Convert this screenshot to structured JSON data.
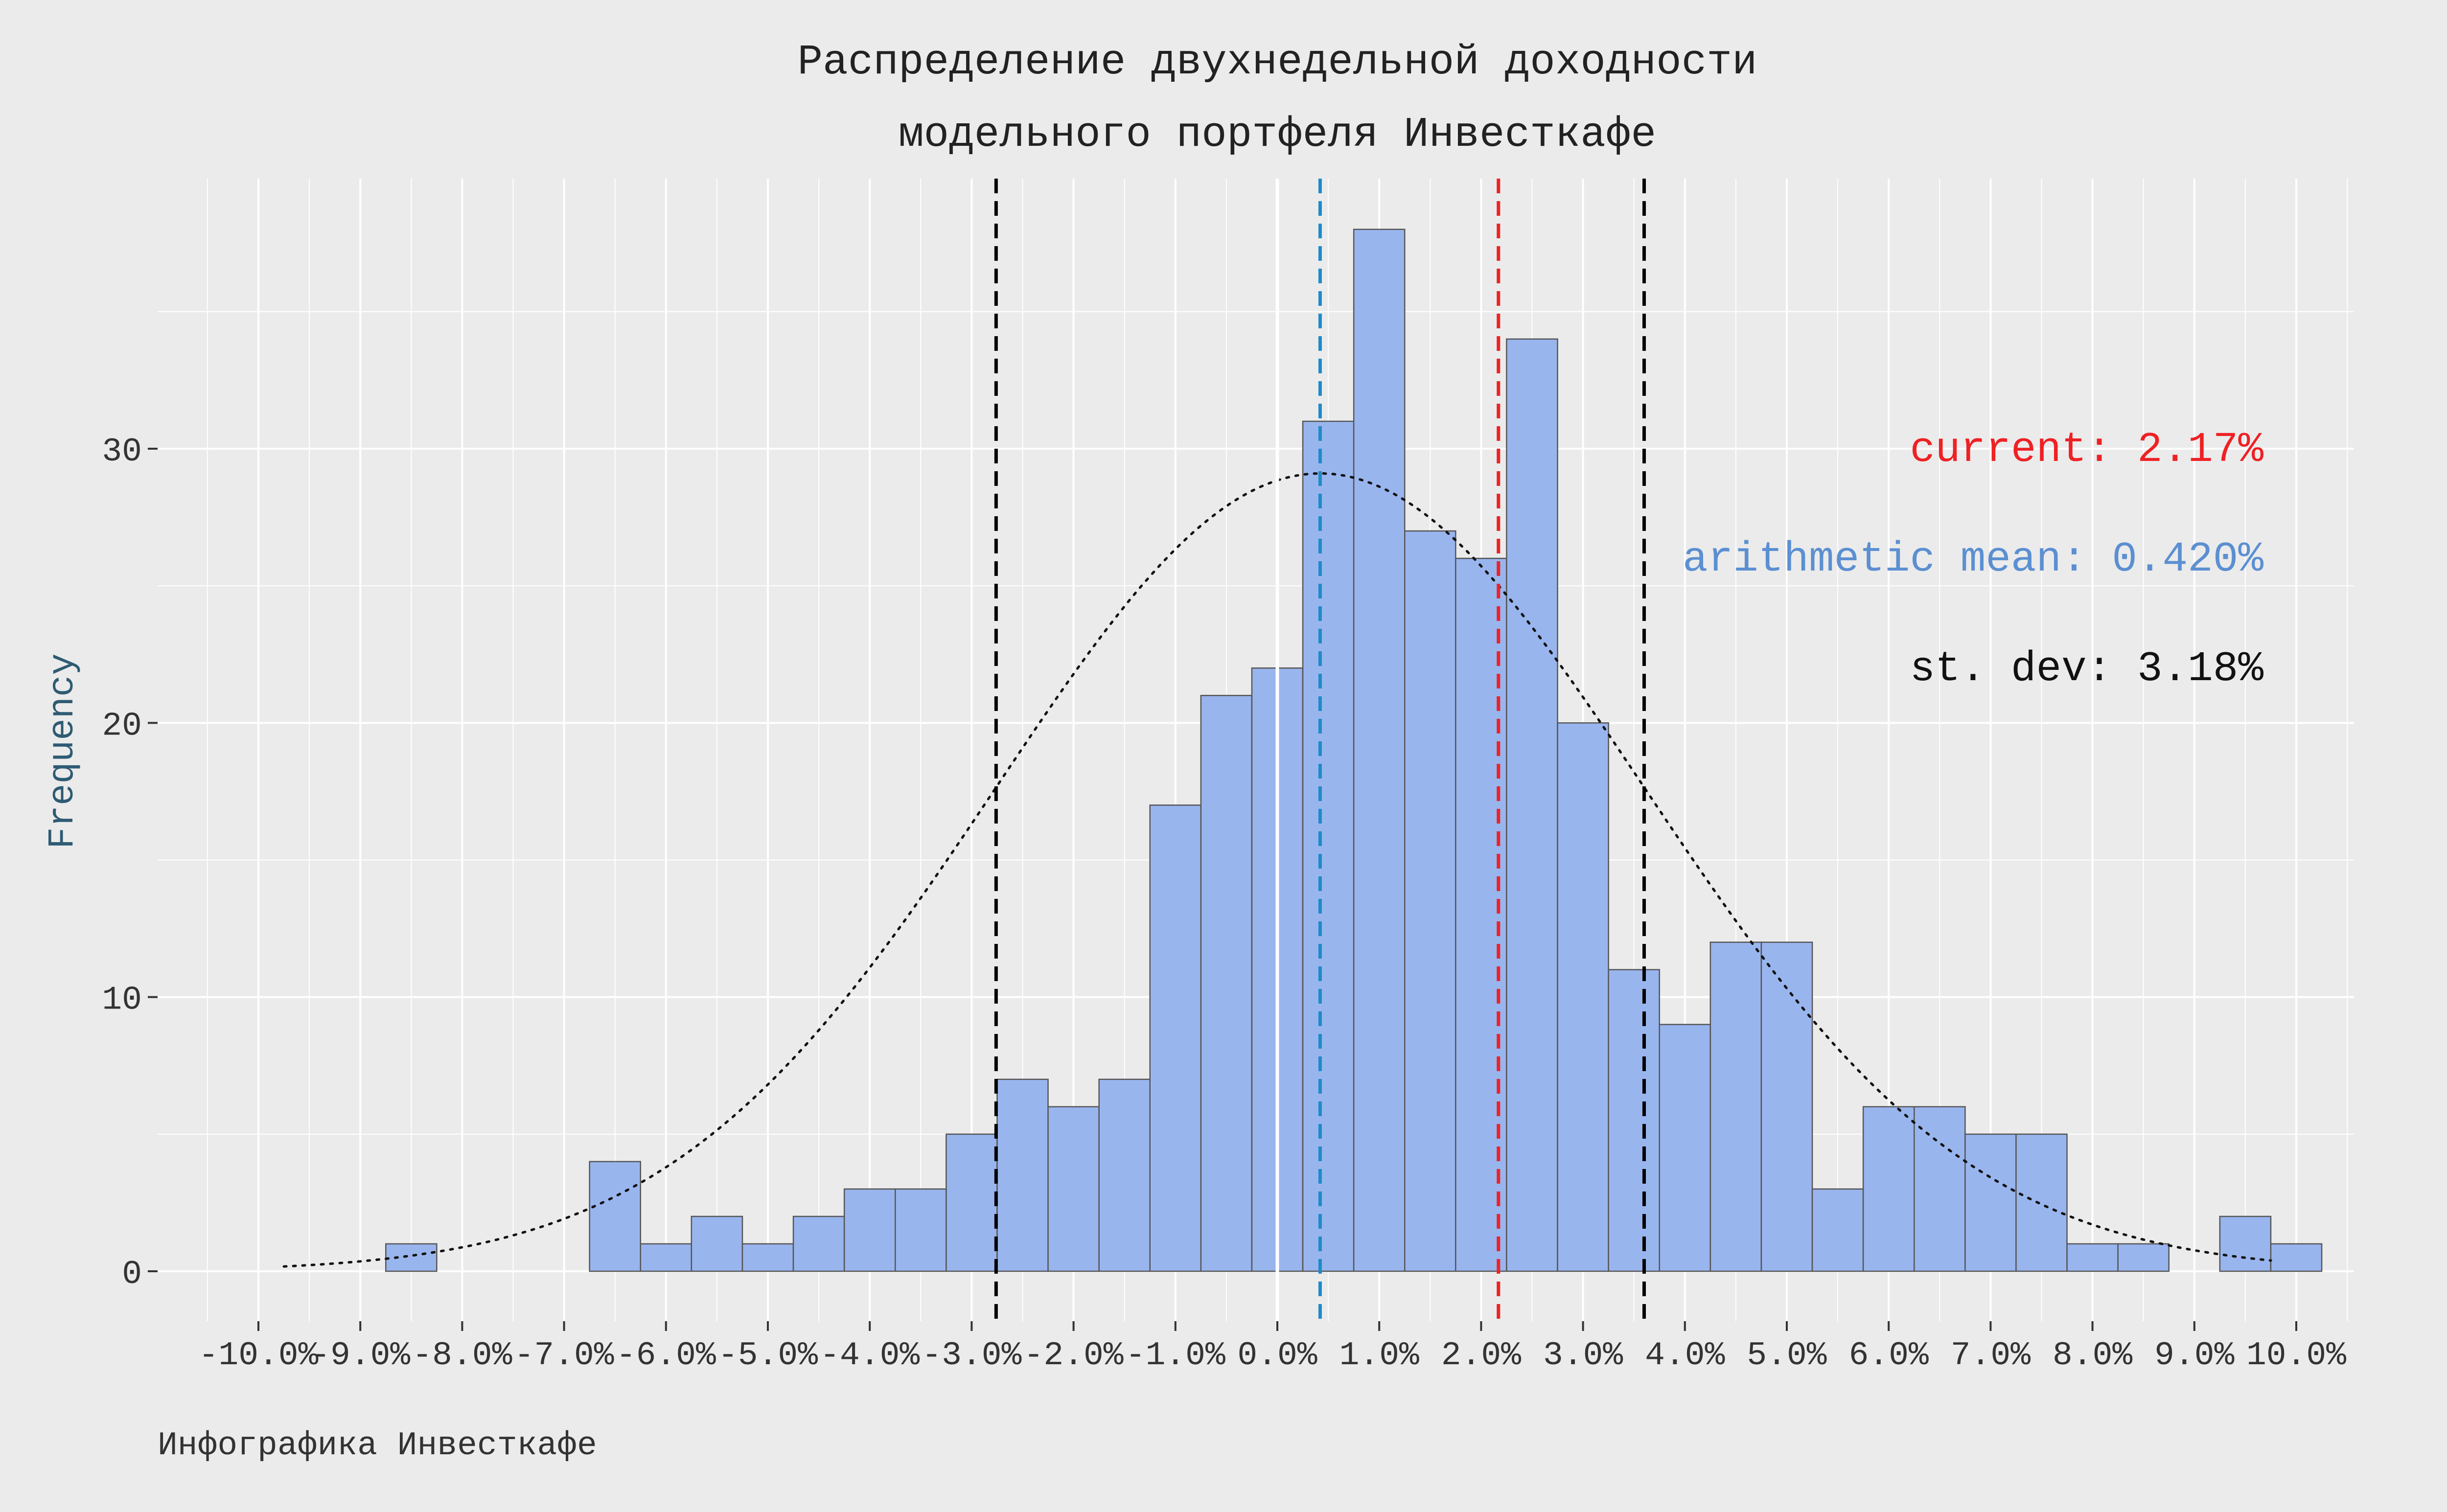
{
  "chart_data": {
    "type": "bar",
    "title_line1": "Распределение двухнедельной доходности",
    "title_line2": "модельного портфеля Инвесткафе",
    "xlabel": "",
    "ylabel": "Frequency",
    "caption": "Инфографика Инвесткафе",
    "xlim": [
      -0.1,
      0.1
    ],
    "ylim": [
      -1.8,
      39
    ],
    "x_ticks": [
      -0.1,
      -0.09,
      -0.08,
      -0.07,
      -0.06,
      -0.05,
      -0.04,
      -0.03,
      -0.02,
      -0.01,
      0.0,
      0.01,
      0.02,
      0.03,
      0.04,
      0.05,
      0.06,
      0.07,
      0.08,
      0.09,
      0.1
    ],
    "x_tick_labels": [
      "-10.0%",
      "-9.0%",
      "-8.0%",
      "-7.0%",
      "-6.0%",
      "-5.0%",
      "-4.0%",
      "-3.0%",
      "-2.0%",
      "-1.0%",
      "0.0%",
      "1.0%",
      "2.0%",
      "3.0%",
      "4.0%",
      "5.0%",
      "6.0%",
      "7.0%",
      "8.0%",
      "9.0%",
      "10.0%"
    ],
    "y_ticks": [
      0,
      10,
      20,
      30
    ],
    "y_tick_labels": [
      "0",
      "10",
      "20",
      "30"
    ],
    "bin_width": 0.005,
    "bins_start": -0.0975,
    "counts": [
      0,
      0,
      1,
      0,
      0,
      0,
      4,
      1,
      2,
      1,
      2,
      3,
      3,
      5,
      7,
      6,
      7,
      17,
      21,
      22,
      31,
      38,
      27,
      26,
      34,
      20,
      11,
      9,
      12,
      12,
      3,
      6,
      6,
      5,
      5,
      1,
      1,
      0,
      2,
      1,
      0
    ],
    "mean": 0.0042,
    "sd": 0.0318,
    "current": 0.0217,
    "normal_curve_peak": 29.1,
    "lines": {
      "current": {
        "value": 0.0217,
        "color": "#ee2124",
        "style": "dashed"
      },
      "mean": {
        "value": 0.0042,
        "color": "#1f8ac9",
        "style": "dashed"
      },
      "minus_sd": {
        "value": -0.0276,
        "color": "#000000",
        "style": "dashed"
      },
      "plus_sd": {
        "value": 0.036,
        "color": "#000000",
        "style": "dashed"
      },
      "zero": {
        "value": 0.0,
        "color": "#ffffff",
        "style": "solid"
      }
    },
    "annotations": {
      "current": "current: 2.17%",
      "mean": "arithmetic mean: 0.420%",
      "sd": "st. dev: 3.18%"
    },
    "grid": true,
    "colors": {
      "background": "#ebebeb",
      "panel": "#ebebeb",
      "grid": "#ffffff",
      "bar_fill": "#99b5ee",
      "bar_stroke": "#555555",
      "current": "#ee2124",
      "mean_text": "#5b8fd1",
      "ylabel": "#2e5b73"
    }
  }
}
